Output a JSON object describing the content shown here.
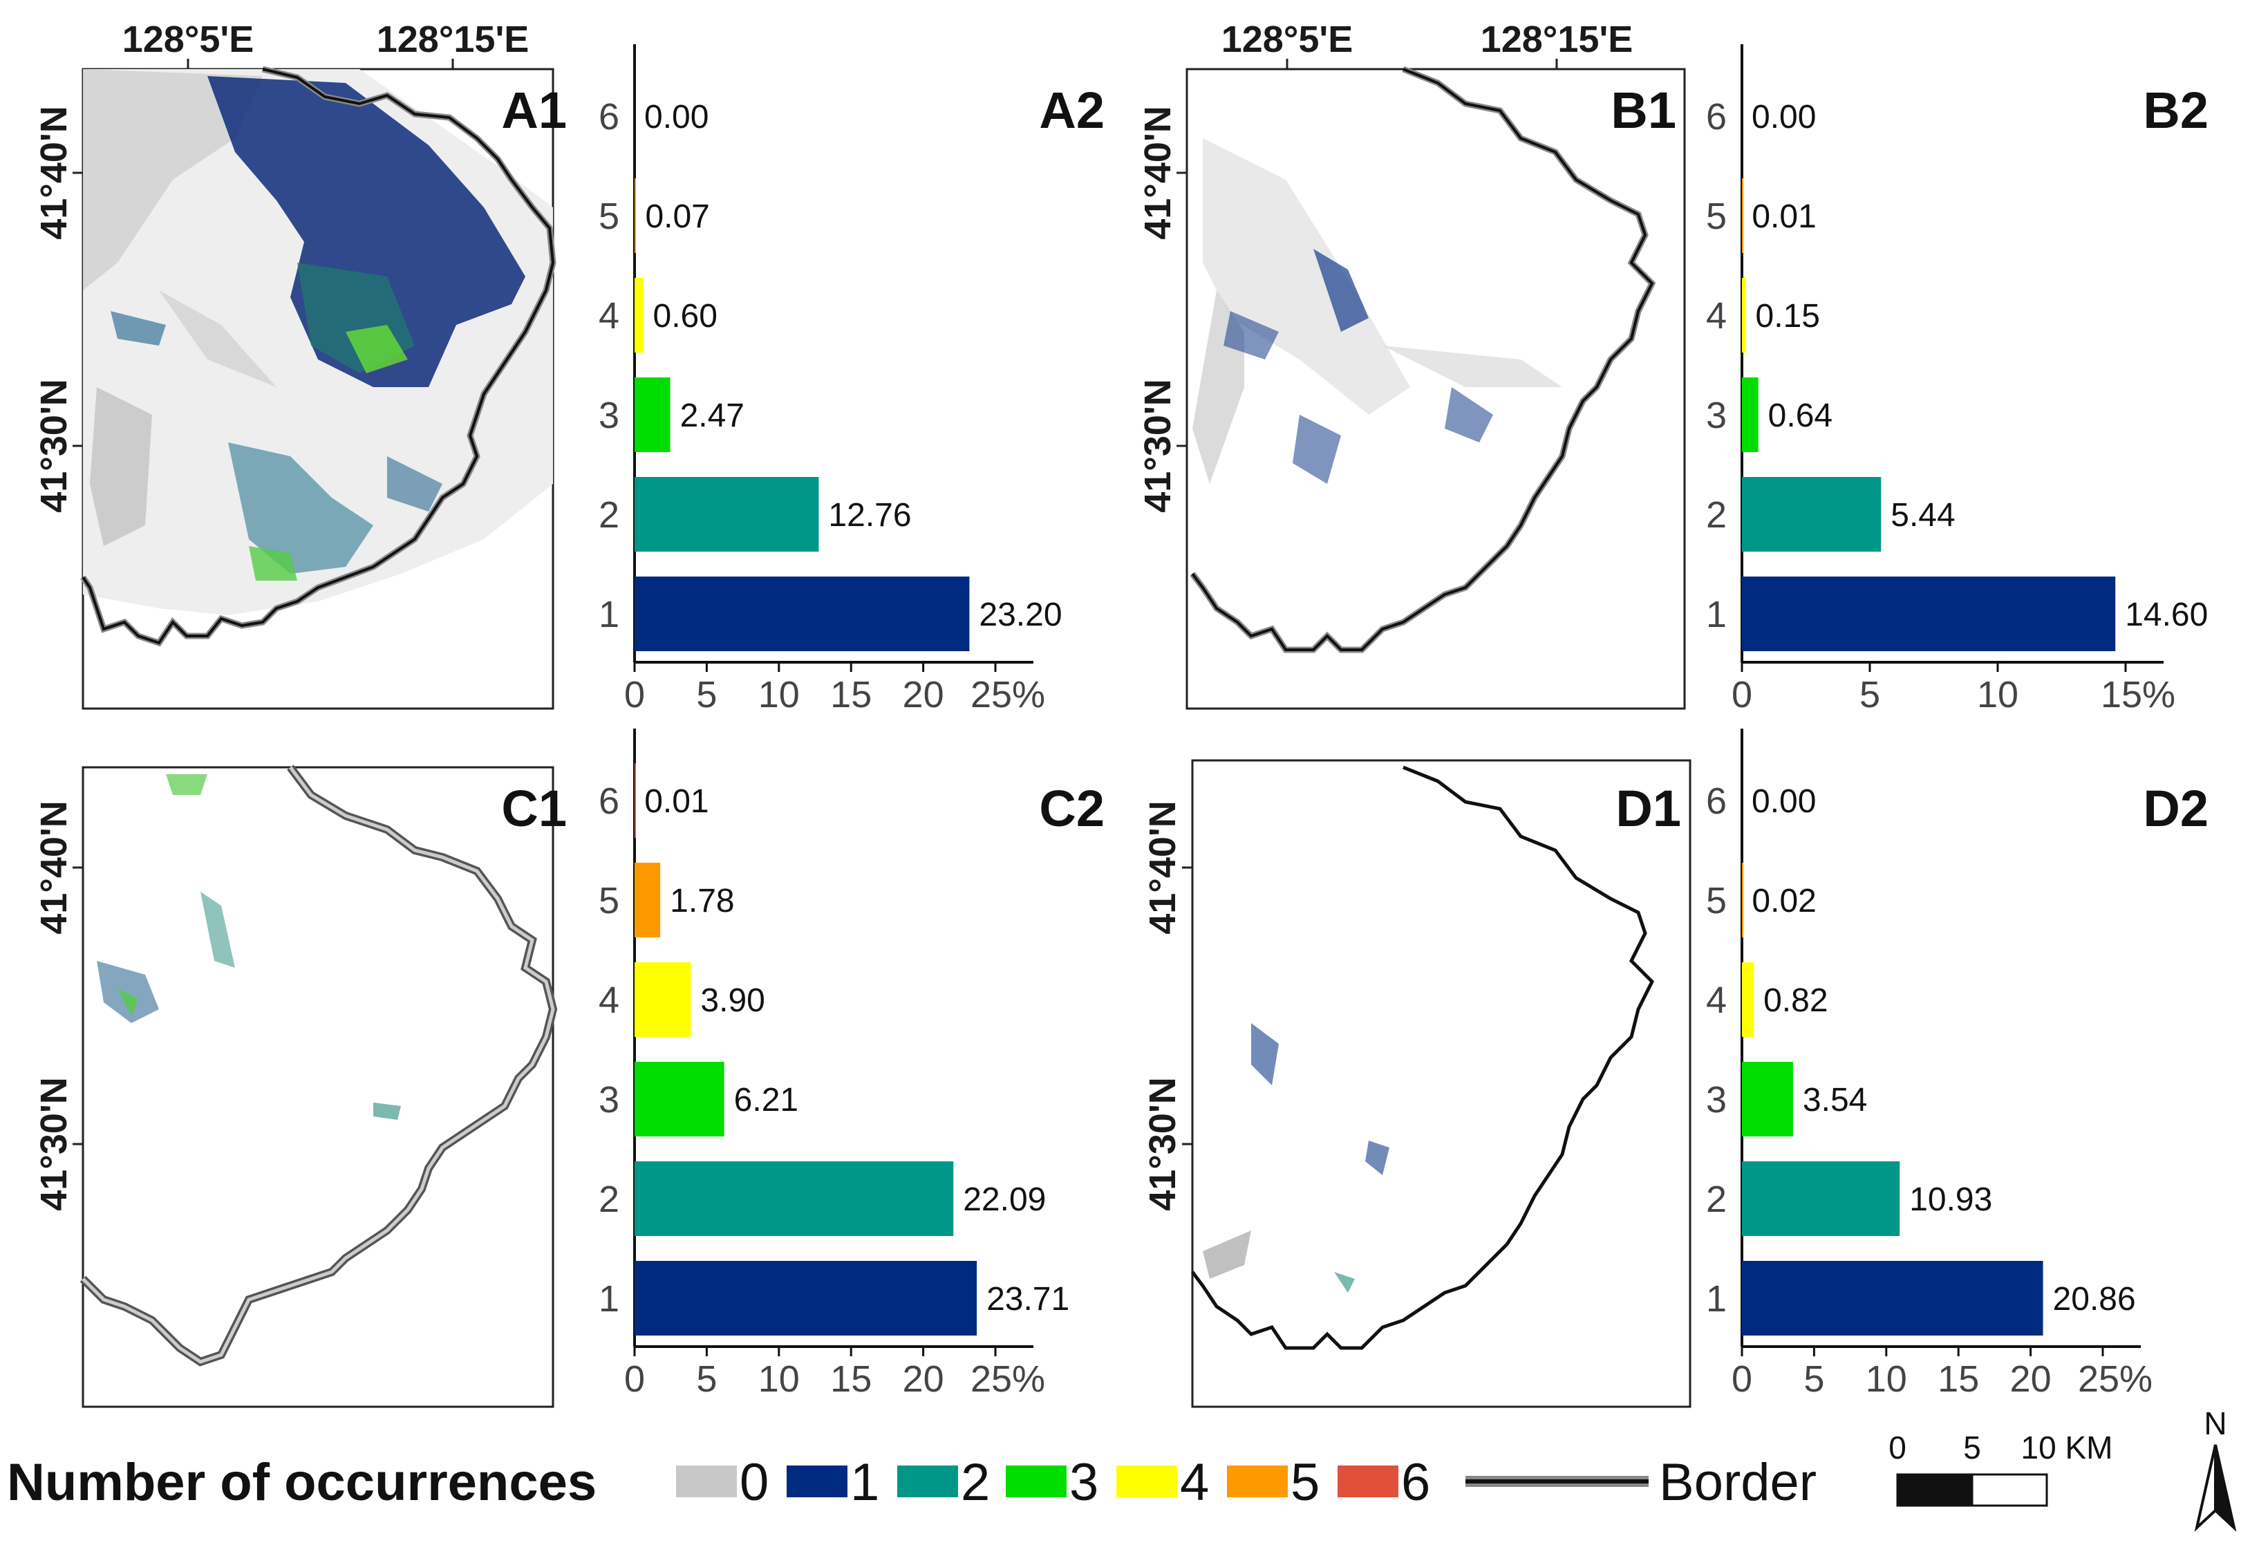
{
  "coords": {
    "lon_ticks": [
      "128°5'E",
      "128°15'E"
    ],
    "lat_ticks": [
      "41°40'N",
      "41°30'N"
    ]
  },
  "maps": [
    {
      "label": "A1"
    },
    {
      "label": "B1"
    },
    {
      "label": "C1"
    },
    {
      "label": "D1"
    }
  ],
  "chart_data": [
    {
      "type": "bar",
      "label": "A2",
      "orientation": "horizontal",
      "categories": [
        "1",
        "2",
        "3",
        "4",
        "5",
        "6"
      ],
      "values": [
        23.2,
        12.76,
        2.47,
        0.6,
        0.07,
        0.0
      ],
      "value_labels": [
        "23.20",
        "12.76",
        "2.47",
        "0.60",
        "0.07",
        "0.00"
      ],
      "xlim": [
        0,
        25
      ],
      "x_ticks": [
        "0",
        "5",
        "10",
        "15",
        "20",
        "25%"
      ]
    },
    {
      "type": "bar",
      "label": "B2",
      "orientation": "horizontal",
      "categories": [
        "1",
        "2",
        "3",
        "4",
        "5",
        "6"
      ],
      "values": [
        14.6,
        5.44,
        0.64,
        0.15,
        0.01,
        0.0
      ],
      "value_labels": [
        "14.60",
        "5.44",
        "0.64",
        "0.15",
        "0.01",
        "0.00"
      ],
      "xlim": [
        0,
        15
      ],
      "x_ticks": [
        "0",
        "5",
        "10",
        "15%"
      ]
    },
    {
      "type": "bar",
      "label": "C2",
      "orientation": "horizontal",
      "categories": [
        "1",
        "2",
        "3",
        "4",
        "5",
        "6"
      ],
      "values": [
        23.71,
        22.09,
        6.21,
        3.9,
        1.78,
        0.01
      ],
      "value_labels": [
        "23.71",
        "22.09",
        "6.21",
        "3.90",
        "1.78",
        "0.01"
      ],
      "xlim": [
        0,
        25
      ],
      "x_ticks": [
        "0",
        "5",
        "10",
        "15",
        "20",
        "25%"
      ]
    },
    {
      "type": "bar",
      "label": "D2",
      "orientation": "horizontal",
      "categories": [
        "1",
        "2",
        "3",
        "4",
        "5",
        "6"
      ],
      "values": [
        20.86,
        10.93,
        3.54,
        0.82,
        0.02,
        0.0
      ],
      "value_labels": [
        "20.86",
        "10.93",
        "3.54",
        "0.82",
        "0.02",
        "0.00"
      ],
      "xlim": [
        0,
        25
      ],
      "x_ticks": [
        "0",
        "5",
        "10",
        "15",
        "20",
        "25%"
      ]
    }
  ],
  "category_colors": [
    "#c8c8c8",
    "#002a7f",
    "#009688",
    "#00dd00",
    "#ffff00",
    "#ff9900",
    "#e0503a"
  ],
  "legend": {
    "title": "Number of occurrences",
    "items": [
      "0",
      "1",
      "2",
      "3",
      "4",
      "5",
      "6"
    ],
    "border_label": "Border"
  },
  "scalebar": {
    "labels": [
      "0",
      "5",
      "10 KM"
    ]
  },
  "north_arrow": {
    "label": "N"
  }
}
